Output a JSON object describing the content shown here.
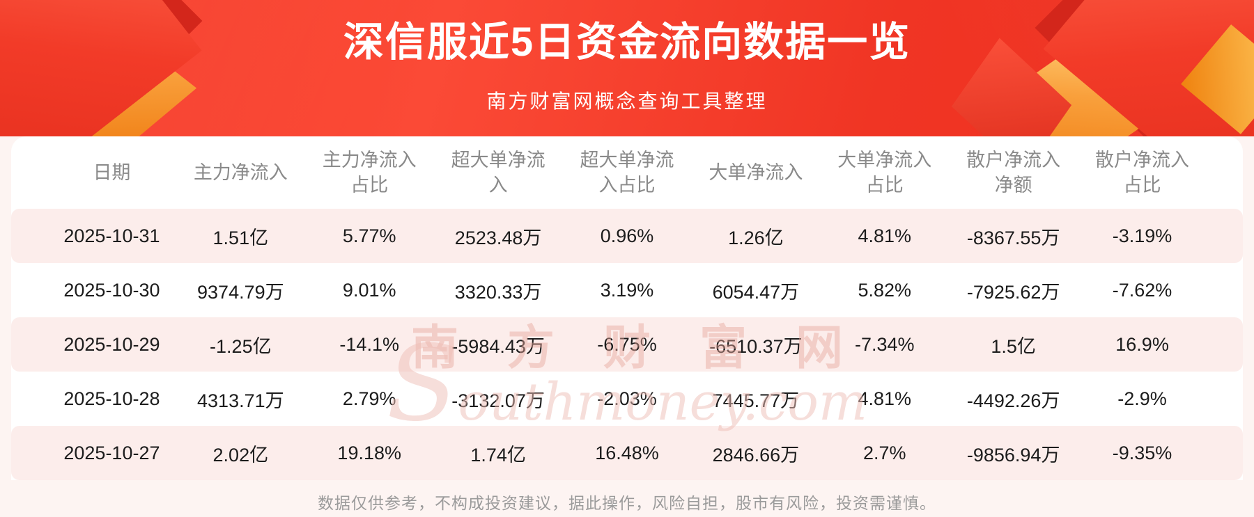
{
  "header": {
    "title": "深信服近5日资金流向数据一览",
    "subtitle": "南方财富网概念查询工具整理"
  },
  "chart_data": {
    "type": "table",
    "title": "深信服近5日资金流向数据一览",
    "subtitle": "南方财富网概念查询工具整理",
    "columns": [
      "日期",
      "主力净流入",
      "主力净流入占比",
      "超大单净流入",
      "超大单净流入占比",
      "大单净流入",
      "大单净流入占比",
      "散户净流入净额",
      "散户净流入占比"
    ],
    "rows": [
      [
        "2025-10-31",
        "1.51亿",
        "5.77%",
        "2523.48万",
        "0.96%",
        "1.26亿",
        "4.81%",
        "-8367.55万",
        "-3.19%"
      ],
      [
        "2025-10-30",
        "9374.79万",
        "9.01%",
        "3320.33万",
        "3.19%",
        "6054.47万",
        "5.82%",
        "-7925.62万",
        "-7.62%"
      ],
      [
        "2025-10-29",
        "-1.25亿",
        "-14.1%",
        "-5984.43万",
        "-6.75%",
        "-6510.37万",
        "-7.34%",
        "1.5亿",
        "16.9%"
      ],
      [
        "2025-10-28",
        "4313.71万",
        "2.79%",
        "-3132.07万",
        "-2.03%",
        "7445.77万",
        "4.81%",
        "-4492.26万",
        "-2.9%"
      ],
      [
        "2025-10-27",
        "2.02亿",
        "19.18%",
        "1.74亿",
        "16.48%",
        "2846.66万",
        "2.7%",
        "-9856.94万",
        "-9.35%"
      ]
    ]
  },
  "watermark": {
    "line1": "南方财富网",
    "line2": "Southmoney.com"
  },
  "footer": {
    "disclaimer": "数据仅供参考，不构成投资建议，据此操作，风险自担，股市有风险，投资需谨慎。"
  },
  "colors": {
    "banner_red": "#f23a28",
    "banner_dark_red": "#d3261b",
    "gold_accent": "#f9a03c",
    "row_pink": "#fcedeb",
    "header_gray": "#8a8a8a",
    "text_dark": "#1c1c1c",
    "disclaimer_gray": "#9b9b9b",
    "watermark_pink": "#e7a69c"
  }
}
